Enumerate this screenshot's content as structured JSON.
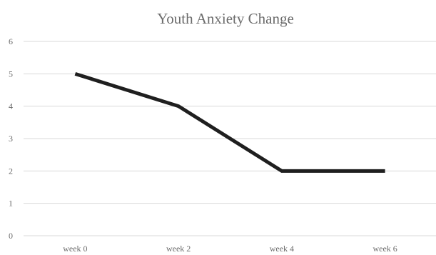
{
  "chart_data": {
    "type": "line",
    "title": "Youth Anxiety Change",
    "xlabel": "",
    "ylabel": "",
    "categories": [
      "week 0",
      "week 2",
      "week 4",
      "week 6"
    ],
    "series": [
      {
        "values": [
          5,
          4,
          2,
          2
        ],
        "color": "#1f1f1f"
      }
    ],
    "ylim": [
      0,
      6
    ],
    "yticks": [
      0,
      1,
      2,
      3,
      4,
      5,
      6
    ],
    "grid": true,
    "legend": "none"
  }
}
